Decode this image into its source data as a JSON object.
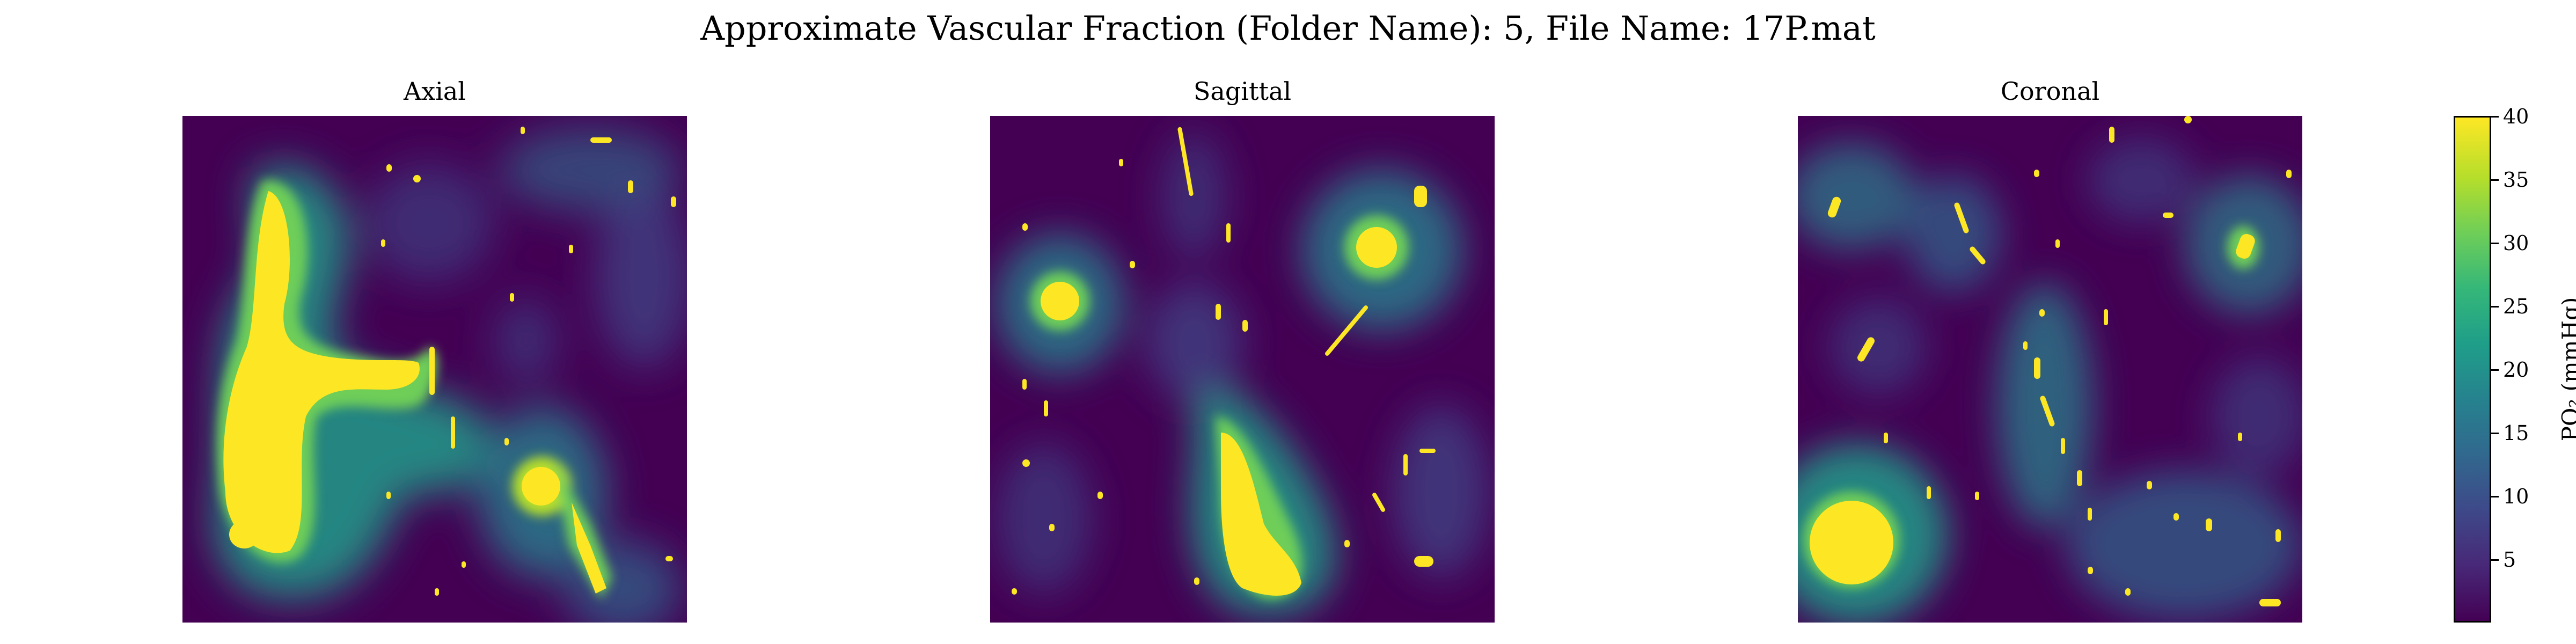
{
  "figure": {
    "suptitle": "Approximate Vascular Fraction (Folder Name): 5, File Name: 17P.mat",
    "panels": [
      {
        "title": "Axial"
      },
      {
        "title": "Sagittal"
      },
      {
        "title": "Coronal"
      }
    ],
    "colorbar": {
      "label": "PO₂ (mmHg)",
      "ticks": [
        "5",
        "10",
        "15",
        "20",
        "25",
        "30",
        "35",
        "40"
      ],
      "range": [
        0,
        40
      ],
      "colormap": "viridis"
    },
    "colors": {
      "low": "#440154",
      "mid": "#21918c",
      "high": "#fde725"
    }
  }
}
